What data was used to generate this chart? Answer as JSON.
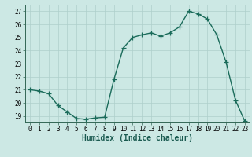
{
  "x": [
    0,
    1,
    2,
    3,
    4,
    5,
    6,
    7,
    8,
    9,
    10,
    11,
    12,
    13,
    14,
    15,
    16,
    17,
    18,
    19,
    20,
    21,
    22,
    23
  ],
  "y": [
    21.0,
    20.9,
    20.7,
    19.8,
    19.3,
    18.8,
    18.75,
    18.85,
    18.9,
    21.8,
    24.2,
    25.0,
    25.2,
    25.35,
    25.1,
    25.35,
    25.8,
    27.0,
    26.8,
    26.4,
    25.2,
    23.1,
    20.2,
    18.6
  ],
  "line_color": "#1a6b5a",
  "marker": "+",
  "markersize": 4,
  "linewidth": 1.0,
  "xlabel": "Humidex (Indice chaleur)",
  "xlim": [
    -0.5,
    23.5
  ],
  "ylim": [
    18.5,
    27.5
  ],
  "yticks": [
    19,
    20,
    21,
    22,
    23,
    24,
    25,
    26,
    27
  ],
  "xticks": [
    0,
    1,
    2,
    3,
    4,
    5,
    6,
    7,
    8,
    9,
    10,
    11,
    12,
    13,
    14,
    15,
    16,
    17,
    18,
    19,
    20,
    21,
    22,
    23
  ],
  "bg_color": "#cce8e4",
  "grid_color": "#aecfcb",
  "tick_label_fontsize": 5.5,
  "xlabel_fontsize": 7.0
}
